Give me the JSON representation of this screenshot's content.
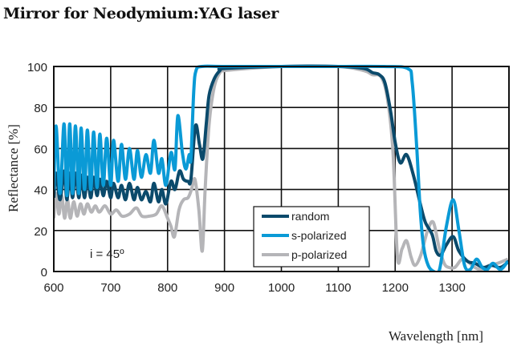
{
  "chart_data": {
    "type": "line",
    "title": "Mirror for Neodymium:YAG laser",
    "xlabel": "Wavelength [nm]",
    "ylabel": "Reflectance [%]",
    "xlim": [
      600,
      1400
    ],
    "ylim": [
      0,
      100
    ],
    "xticks": [
      600,
      700,
      800,
      900,
      1000,
      1100,
      1200,
      1300
    ],
    "yticks": [
      0,
      20,
      40,
      60,
      80,
      100
    ],
    "grid": true,
    "legend_position": "bottom-center-right",
    "annotation": "i = 45º",
    "series": [
      {
        "name": "s-polarized",
        "color": "#0a9ad6",
        "points": [
          [
            600,
            40
          ],
          [
            604,
            71
          ],
          [
            611,
            38
          ],
          [
            618,
            72
          ],
          [
            623,
            37
          ],
          [
            628,
            72
          ],
          [
            633,
            38
          ],
          [
            638,
            71
          ],
          [
            644,
            38
          ],
          [
            648,
            70
          ],
          [
            654,
            40
          ],
          [
            659,
            69
          ],
          [
            665,
            40
          ],
          [
            670,
            68
          ],
          [
            676,
            41
          ],
          [
            681,
            67
          ],
          [
            687,
            42
          ],
          [
            693,
            65
          ],
          [
            700,
            42
          ],
          [
            705,
            64
          ],
          [
            713,
            44
          ],
          [
            719,
            62
          ],
          [
            726,
            45
          ],
          [
            733,
            60
          ],
          [
            741,
            45
          ],
          [
            747,
            59
          ],
          [
            754,
            46
          ],
          [
            762,
            57
          ],
          [
            770,
            48
          ],
          [
            776,
            64
          ],
          [
            784,
            48
          ],
          [
            790,
            55
          ],
          [
            797,
            42
          ],
          [
            806,
            58
          ],
          [
            813,
            50
          ],
          [
            818,
            76
          ],
          [
            826,
            58
          ],
          [
            832,
            50
          ],
          [
            838,
            57
          ],
          [
            841,
            55
          ],
          [
            846,
            88
          ],
          [
            850,
            98
          ],
          [
            860,
            100
          ],
          [
            900,
            100
          ],
          [
            1000,
            100
          ],
          [
            1100,
            100
          ],
          [
            1180,
            100
          ],
          [
            1222,
            99
          ],
          [
            1230,
            92
          ],
          [
            1238,
            60
          ],
          [
            1244,
            30
          ],
          [
            1250,
            12
          ],
          [
            1258,
            3
          ],
          [
            1268,
            0
          ],
          [
            1278,
            1
          ],
          [
            1290,
            22
          ],
          [
            1302,
            35
          ],
          [
            1312,
            20
          ],
          [
            1322,
            3
          ],
          [
            1332,
            1
          ],
          [
            1343,
            6
          ],
          [
            1353,
            2
          ],
          [
            1362,
            1
          ],
          [
            1372,
            4
          ],
          [
            1385,
            1
          ],
          [
            1398,
            5
          ]
        ]
      },
      {
        "name": "random",
        "color": "#0b4a6b",
        "points": [
          [
            600,
            36
          ],
          [
            604,
            48
          ],
          [
            611,
            35
          ],
          [
            618,
            49
          ],
          [
            623,
            35
          ],
          [
            628,
            48
          ],
          [
            633,
            36
          ],
          [
            638,
            48
          ],
          [
            644,
            36
          ],
          [
            648,
            47
          ],
          [
            654,
            36
          ],
          [
            659,
            46
          ],
          [
            665,
            36
          ],
          [
            670,
            46
          ],
          [
            676,
            37
          ],
          [
            681,
            45
          ],
          [
            687,
            37
          ],
          [
            693,
            44
          ],
          [
            700,
            36
          ],
          [
            705,
            43
          ],
          [
            713,
            36
          ],
          [
            719,
            42
          ],
          [
            726,
            35
          ],
          [
            733,
            43
          ],
          [
            741,
            35
          ],
          [
            747,
            41
          ],
          [
            754,
            35
          ],
          [
            762,
            39
          ],
          [
            770,
            34
          ],
          [
            776,
            43
          ],
          [
            784,
            34
          ],
          [
            790,
            40
          ],
          [
            797,
            33
          ],
          [
            806,
            44
          ],
          [
            813,
            40
          ],
          [
            821,
            49
          ],
          [
            828,
            45
          ],
          [
            836,
            44
          ],
          [
            841,
            45
          ],
          [
            849,
            71
          ],
          [
            856,
            62
          ],
          [
            862,
            55
          ],
          [
            868,
            72
          ],
          [
            873,
            86
          ],
          [
            882,
            94
          ],
          [
            892,
            98
          ],
          [
            900,
            99
          ],
          [
            1000,
            100
          ],
          [
            1100,
            100
          ],
          [
            1145,
            99
          ],
          [
            1160,
            97
          ],
          [
            1172,
            96
          ],
          [
            1182,
            92
          ],
          [
            1192,
            78
          ],
          [
            1200,
            63
          ],
          [
            1209,
            53
          ],
          [
            1220,
            57
          ],
          [
            1232,
            47
          ],
          [
            1245,
            32
          ],
          [
            1253,
            24
          ],
          [
            1265,
            18
          ],
          [
            1272,
            10
          ],
          [
            1280,
            8
          ],
          [
            1290,
            13
          ],
          [
            1302,
            17
          ],
          [
            1312,
            10
          ],
          [
            1327,
            5
          ],
          [
            1340,
            4
          ],
          [
            1355,
            2
          ],
          [
            1370,
            3
          ],
          [
            1385,
            2
          ],
          [
            1400,
            5
          ]
        ]
      },
      {
        "name": "p-polarized",
        "color": "#b5b5b8",
        "points": [
          [
            600,
            26
          ],
          [
            604,
            38
          ],
          [
            609,
            28
          ],
          [
            614,
            37
          ],
          [
            619,
            26
          ],
          [
            624,
            35
          ],
          [
            629,
            26
          ],
          [
            635,
            34
          ],
          [
            641,
            27
          ],
          [
            647,
            33
          ],
          [
            653,
            28
          ],
          [
            659,
            33
          ],
          [
            666,
            29
          ],
          [
            673,
            32
          ],
          [
            680,
            29
          ],
          [
            690,
            32
          ],
          [
            700,
            28
          ],
          [
            710,
            30
          ],
          [
            720,
            27
          ],
          [
            733,
            28
          ],
          [
            745,
            31
          ],
          [
            755,
            27
          ],
          [
            768,
            27
          ],
          [
            780,
            28
          ],
          [
            790,
            32
          ],
          [
            800,
            26
          ],
          [
            806,
            22
          ],
          [
            812,
            17
          ],
          [
            820,
            30
          ],
          [
            828,
            35
          ],
          [
            836,
            36
          ],
          [
            842,
            40
          ],
          [
            848,
            45
          ],
          [
            855,
            30
          ],
          [
            861,
            10
          ],
          [
            866,
            40
          ],
          [
            873,
            72
          ],
          [
            882,
            90
          ],
          [
            892,
            97
          ],
          [
            900,
            98
          ],
          [
            1000,
            100
          ],
          [
            1100,
            100
          ],
          [
            1145,
            98
          ],
          [
            1160,
            96
          ],
          [
            1175,
            95
          ],
          [
            1186,
            85
          ],
          [
            1196,
            59
          ],
          [
            1204,
            7
          ],
          [
            1212,
            11
          ],
          [
            1220,
            15
          ],
          [
            1228,
            7
          ],
          [
            1235,
            3
          ],
          [
            1245,
            8
          ],
          [
            1257,
            20
          ],
          [
            1267,
            24
          ],
          [
            1277,
            12
          ],
          [
            1286,
            4
          ],
          [
            1294,
            2
          ],
          [
            1305,
            2
          ],
          [
            1317,
            6
          ],
          [
            1327,
            5
          ],
          [
            1340,
            2
          ],
          [
            1351,
            1
          ],
          [
            1365,
            3
          ],
          [
            1380,
            4
          ],
          [
            1398,
            6
          ]
        ]
      }
    ]
  }
}
